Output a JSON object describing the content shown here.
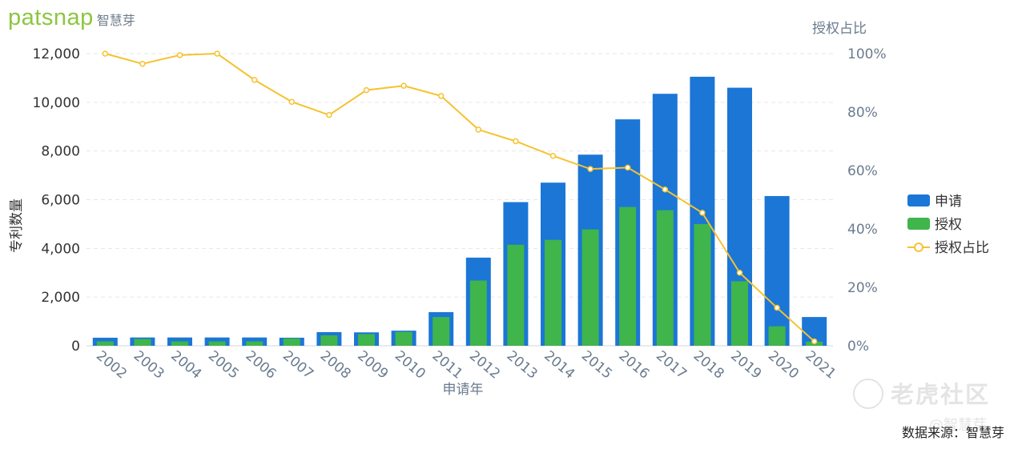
{
  "brand": {
    "logo_text": "patsnap",
    "logo_cn": "智慧芽"
  },
  "source_note": "数据来源：智慧芽",
  "watermark": {
    "text": "老虎社区",
    "sub": "@智慧芽"
  },
  "colors": {
    "apply": "#1b76d6",
    "grant": "#3fb54c",
    "ratio": "#f5c230",
    "axis_text": "#6b7b8f",
    "grid": "#e6e6e6"
  },
  "chart_data": {
    "type": "bar",
    "title": "",
    "xlabel": "申请年",
    "ylabel": "专利数量",
    "y2label": "授权占比",
    "ylim": [
      0,
      12000
    ],
    "y2lim": [
      0,
      100
    ],
    "yticks": [
      "0",
      "2,000",
      "4,000",
      "6,000",
      "8,000",
      "10,000",
      "12,000"
    ],
    "y2ticks": [
      "0%",
      "20%",
      "40%",
      "60%",
      "80%",
      "100%"
    ],
    "grid": true,
    "legend_position": "right",
    "categories": [
      "2002",
      "2003",
      "2004",
      "2005",
      "2006",
      "2007",
      "2008",
      "2009",
      "2010",
      "2011",
      "2012",
      "2013",
      "2014",
      "2015",
      "2016",
      "2017",
      "2018",
      "2019",
      "2020",
      "2021"
    ],
    "series": [
      {
        "name": "申请",
        "type": "bar",
        "axis": "left",
        "values": [
          330,
          340,
          340,
          340,
          340,
          330,
          560,
          550,
          620,
          1380,
          3620,
          5900,
          6700,
          7850,
          9300,
          10350,
          11050,
          10600,
          6150,
          1180
        ]
      },
      {
        "name": "授权",
        "type": "bar",
        "axis": "left",
        "values": [
          180,
          280,
          180,
          180,
          180,
          300,
          430,
          480,
          570,
          1180,
          2680,
          4150,
          4350,
          4780,
          5700,
          5570,
          5000,
          2650,
          800,
          170
        ]
      },
      {
        "name": "授权占比",
        "type": "line",
        "axis": "right",
        "values": [
          100,
          96.5,
          99.5,
          100,
          91,
          83.5,
          79,
          87.5,
          89,
          85.5,
          74,
          70,
          65,
          60.5,
          61,
          53.5,
          45.5,
          25,
          13,
          1.5
        ]
      }
    ]
  }
}
